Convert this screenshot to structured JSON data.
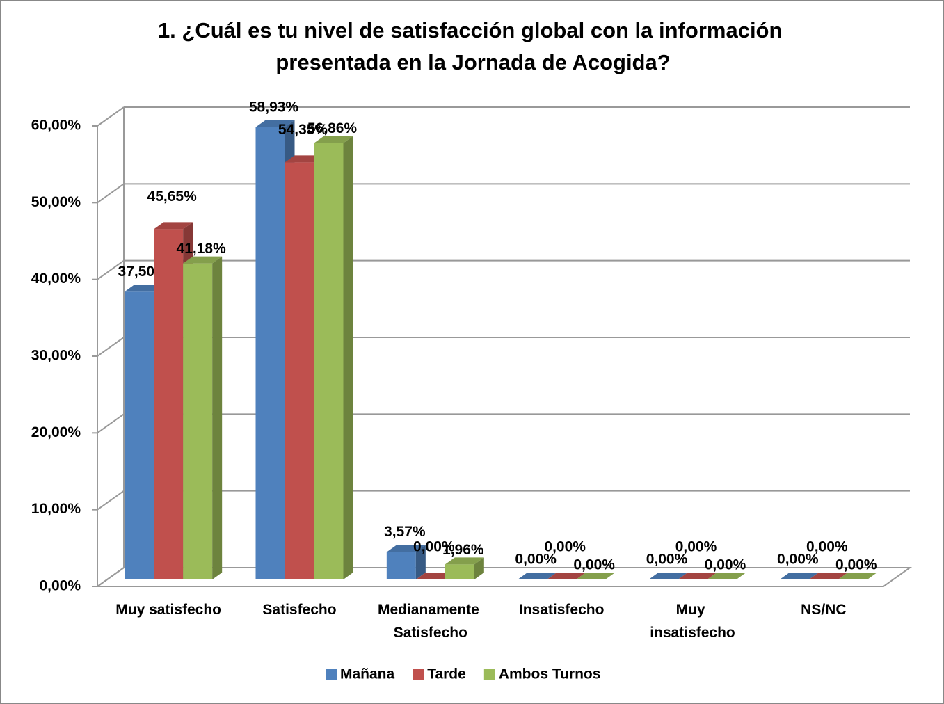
{
  "chart_data": {
    "type": "bar3d",
    "title": "1. ¿Cuál es tu nivel de satisfacción global con la información presentada en la Jornada de Acogida?",
    "categories": [
      "Muy satisfecho",
      "Satisfecho",
      "Medianamente Satisfecho",
      "Insatisfecho",
      "Muy insatisfecho",
      "NS/NC"
    ],
    "series": [
      {
        "name": "Mañana",
        "color": "#4f81bd",
        "values": [
          37.5,
          58.93,
          3.57,
          0,
          0,
          0
        ],
        "value_labels": [
          "37,50%",
          "58,93%",
          "3,57%",
          "0,00%",
          "0,00%",
          "0,00%"
        ]
      },
      {
        "name": "Tarde",
        "color": "#c0504d",
        "values": [
          45.65,
          54.35,
          0,
          0,
          0,
          0
        ],
        "value_labels": [
          "45,65%",
          "54,35%",
          "0,00%",
          "0,00%",
          "0,00%",
          "0,00%"
        ]
      },
      {
        "name": "Ambos Turnos",
        "color": "#9bbb59",
        "values": [
          41.18,
          56.86,
          1.96,
          0,
          0,
          0
        ],
        "value_labels": [
          "41,18%",
          "56,86%",
          "1,96%",
          "0,00%",
          "0,00%",
          "0,00%"
        ]
      }
    ],
    "ylim": [
      0,
      60
    ],
    "yticks": [
      {
        "value": 0,
        "label": "0,00%"
      },
      {
        "value": 10,
        "label": "10,00%"
      },
      {
        "value": 20,
        "label": "20,00%"
      },
      {
        "value": 30,
        "label": "30,00%"
      },
      {
        "value": 40,
        "label": "40,00%"
      },
      {
        "value": 50,
        "label": "50,00%"
      },
      {
        "value": 60,
        "label": "60,00%"
      }
    ],
    "grid": true,
    "legend": "bottom"
  }
}
